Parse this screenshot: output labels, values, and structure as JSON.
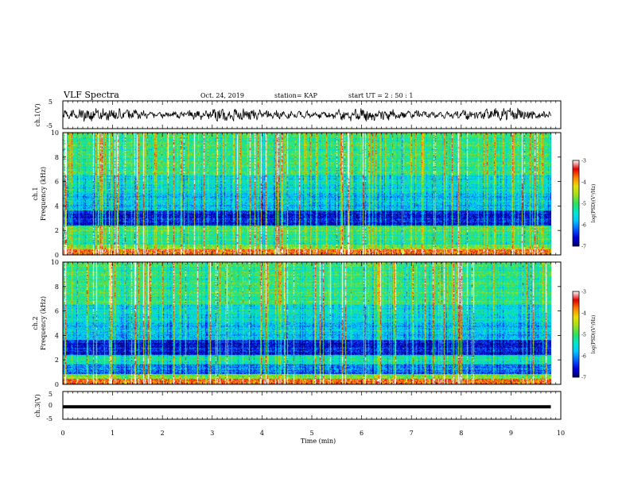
{
  "header": {
    "title": "VLF Spectra",
    "date": "Oct. 24, 2019",
    "station": "station= KAP",
    "start": "start  UT =  2 : 50 : 1"
  },
  "colors": {
    "scale": [
      "#00006e",
      "#0000d8",
      "#0060ff",
      "#00c8ff",
      "#00e8c8",
      "#30e060",
      "#a0e020",
      "#e8e000",
      "#ff8000",
      "#e00000",
      "#ffffff"
    ],
    "trace": "#000000"
  },
  "chart_data": [
    {
      "type": "line",
      "panel": "ch1-waveform",
      "ylabel": "ch.1(V)",
      "ylim": [
        -5,
        5
      ],
      "yticks": [
        "5",
        "-5"
      ],
      "xlim": [
        0,
        10
      ],
      "note_series": "noisy waveform, amplitude roughly ±2 V"
    },
    {
      "type": "heatmap",
      "panel": "ch1-spectrogram",
      "ylabel_line1": "ch.1",
      "ylabel_line2": "Frequency  (kHz)",
      "ylim": [
        0,
        10
      ],
      "yticks": [
        "0",
        "2",
        "4",
        "6",
        "8",
        "10"
      ],
      "xlim": [
        0,
        10
      ],
      "colorbar": {
        "label": "log(PSD)(V²/Hz)",
        "range": [
          -7,
          -3
        ],
        "ticks": [
          "-3",
          "-4",
          "-5",
          "-6",
          "-7"
        ]
      }
    },
    {
      "type": "heatmap",
      "panel": "ch2-spectrogram",
      "ylabel_line1": "ch.2",
      "ylabel_line2": "Frequency  (kHz)",
      "ylim": [
        0,
        10
      ],
      "yticks": [
        "0",
        "2",
        "4",
        "6",
        "8",
        "10"
      ],
      "xlim": [
        0,
        10
      ],
      "colorbar": {
        "label": "log(PSD)(V²/Hz)",
        "range": [
          -7,
          -3
        ],
        "ticks": [
          "-3",
          "-4",
          "-5",
          "-6",
          "-7"
        ]
      }
    },
    {
      "type": "line",
      "panel": "ch3-waveform",
      "ylabel": "ch.3(V)",
      "ylim": [
        -5,
        5
      ],
      "yticks": [
        "5",
        "0",
        "-5"
      ],
      "xlim": [
        0,
        10
      ],
      "x_end": 9.8,
      "values_constant": -0.5
    }
  ],
  "xaxis": {
    "label": "Time  (min)",
    "ticks": [
      "0",
      "1",
      "2",
      "3",
      "4",
      "5",
      "6",
      "7",
      "8",
      "9",
      "10"
    ]
  }
}
